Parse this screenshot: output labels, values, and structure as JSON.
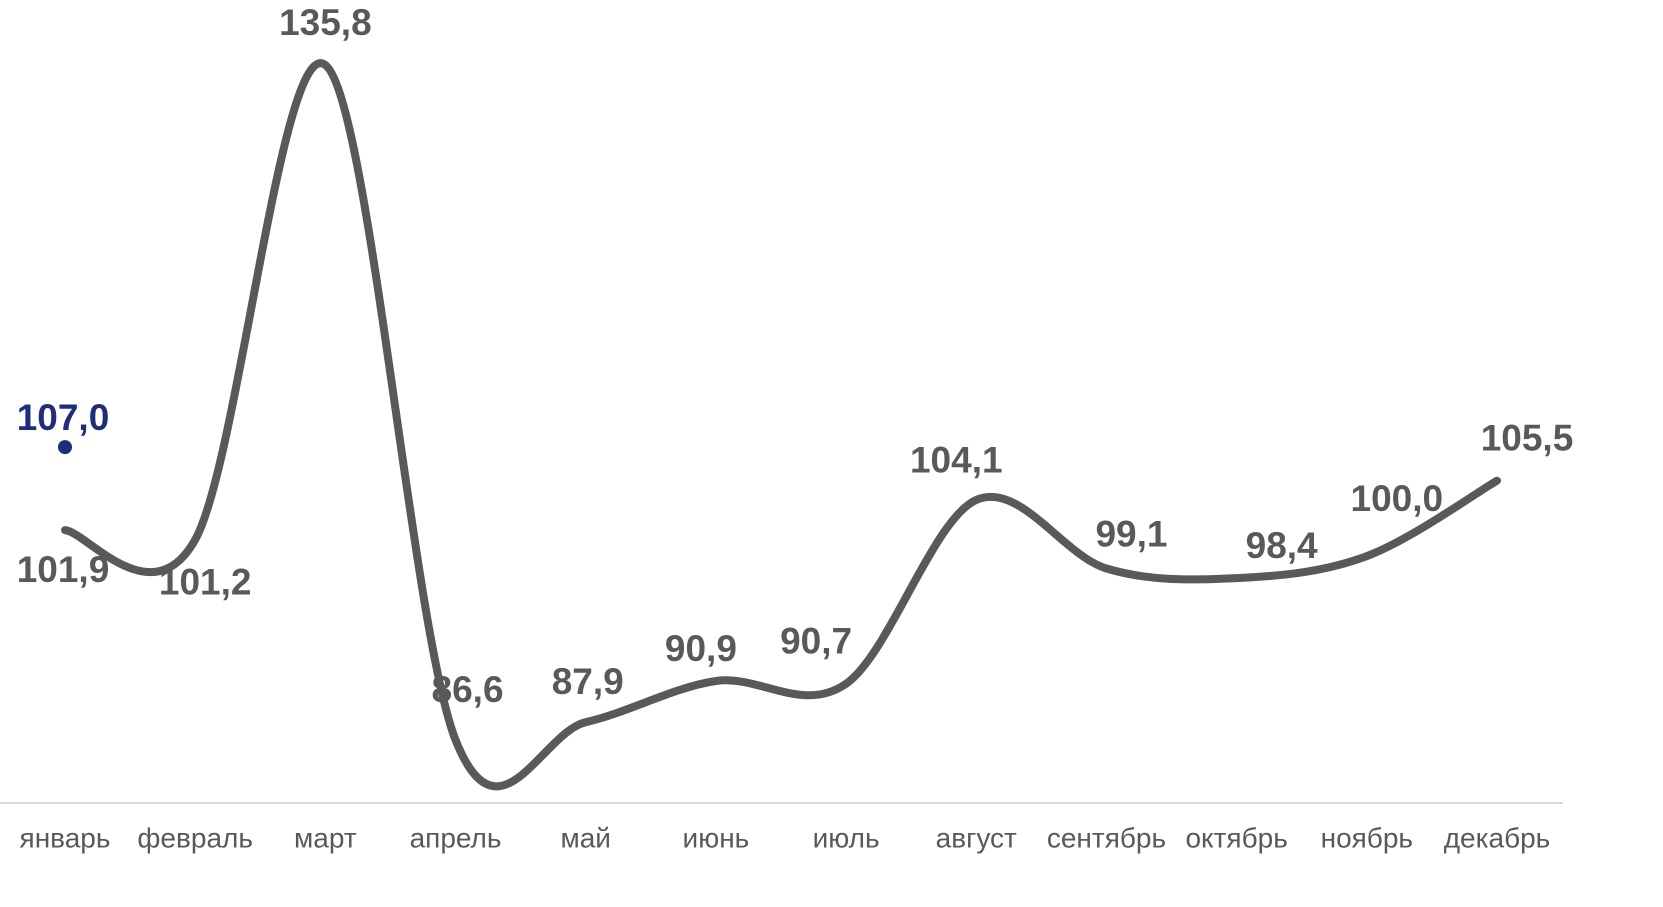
{
  "chart_data": {
    "type": "line",
    "categories": [
      "январь",
      "февраль",
      "март",
      "апрель",
      "май",
      "июнь",
      "июль",
      "август",
      "сентябрь",
      "октябрь",
      "ноябрь",
      "декабрь"
    ],
    "series": [
      {
        "color": "#595959",
        "smooth": true,
        "values": [
          101.9,
          101.2,
          135.8,
          86.6,
          87.9,
          90.9,
          90.7,
          104.1,
          99.1,
          98.4,
          100.0,
          105.5
        ],
        "value_labels": [
          "101,9",
          "101,2",
          "135,8",
          "86,6",
          "87,9",
          "90,9",
          "90,7",
          "104,1",
          "99,1",
          "98,4",
          "100,0",
          "105,5"
        ]
      },
      {
        "color": "#1f2d7b",
        "values": [
          107.0,
          null,
          null,
          null,
          null,
          null,
          null,
          null,
          null,
          null,
          null,
          null
        ],
        "value_labels": [
          "107,0",
          null,
          null,
          null,
          null,
          null,
          null,
          null,
          null,
          null,
          null,
          null
        ]
      }
    ]
  }
}
